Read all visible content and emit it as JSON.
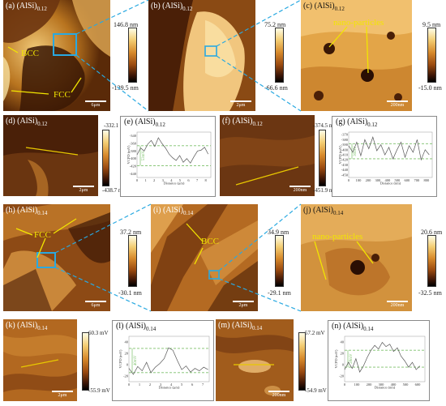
{
  "panels": {
    "a": {
      "label": "(a) (AlSi)",
      "sub": "0.12",
      "scale": "6μm",
      "cbar_max": "146.8 nm",
      "cbar_min": "-139.5 nm",
      "ann1": "BCC",
      "ann2": "FCC"
    },
    "b": {
      "label": "(b) (AlSi)",
      "sub": "0.12",
      "scale": "2μm",
      "cbar_max": "75.2 nm",
      "cbar_min": "-66.6 nm"
    },
    "c": {
      "label": "(c) (AlSi)",
      "sub": "0.12",
      "scale": "200nm",
      "cbar_max": "9.5 nm",
      "cbar_min": "-15.0 nm",
      "ann": "nano-particles"
    },
    "d": {
      "label": "(d) (AlSi)",
      "sub": "0.12",
      "scale": "2μm",
      "cbar_max": "-332.1 mV",
      "cbar_min": "-438.7 mV"
    },
    "e": {
      "label": "(e) (AlSi)",
      "sub": "0.12",
      "ylabel": "V",
      "ylabel_sub": "CPD",
      "ylabel_unit": "(mV)",
      "xlabel": "Distance (μm)",
      "vtext": "53mV",
      "yticks": [
        "-340",
        "-360",
        "-380",
        "-400",
        "-420",
        "-440"
      ],
      "xticks": [
        "0",
        "1",
        "2",
        "3",
        "4",
        "5",
        "6",
        "7",
        "8"
      ]
    },
    "f": {
      "label": "(f) (AlSi)",
      "sub": "0.12",
      "scale": "200nm",
      "cbar_max": "-374.5 mV",
      "cbar_min": "-451.9 mV"
    },
    "g": {
      "label": "(g) (AlSi)",
      "sub": "0.12",
      "ylabel": "V",
      "ylabel_sub": "CPD",
      "ylabel_unit": "(mV)",
      "xlabel": "Distance (nm)",
      "vtext": "30mV",
      "yticks": [
        "-370",
        "-380",
        "-390",
        "-400",
        "-410",
        "-420",
        "-430",
        "-440",
        "-450"
      ],
      "xticks": [
        "0",
        "100",
        "200",
        "300",
        "400",
        "500",
        "600",
        "700",
        "800"
      ]
    },
    "h": {
      "label": "(h) (AlSi)",
      "sub": "0.14",
      "scale": "6μm",
      "cbar_max": "37.2 nm",
      "cbar_min": "-30.1 nm",
      "ann": "FCC"
    },
    "i": {
      "label": "(i) (AlSi)",
      "sub": "0.14",
      "scale": "2μm",
      "cbar_max": "34.9 nm",
      "cbar_min": "-29.1 nm",
      "ann": "BCC"
    },
    "j": {
      "label": "(j) (AlSi)",
      "sub": "0.14",
      "scale": "200nm",
      "cbar_max": "20.6 nm",
      "cbar_min": "-32.5 nm",
      "ann": "nano-particles"
    },
    "k": {
      "label": "(k) (AlSi)",
      "sub": "0.14",
      "scale": "2μm",
      "cbar_max": "60.3 mV",
      "cbar_min": "-55.9 mV"
    },
    "l": {
      "label": "(l) (AlSi)",
      "sub": "0.14",
      "ylabel": "V",
      "ylabel_sub": "CPD",
      "ylabel_unit": "(mV)",
      "xlabel": "Distance (μm)",
      "vtext": "40mV",
      "yticks": [
        "40",
        "20",
        "0",
        "-20"
      ],
      "xticks": [
        "0",
        "1",
        "2",
        "3",
        "4",
        "5",
        "6",
        "7"
      ]
    },
    "m": {
      "label": "(m) (AlSi)",
      "sub": "0.14",
      "scale": "200nm",
      "cbar_max": "57.2 mV",
      "cbar_min": "-54.9 mV"
    },
    "n": {
      "label": "(n) (AlSi)",
      "sub": "0.14",
      "ylabel": "V",
      "ylabel_sub": "CPD",
      "ylabel_unit": "(mV)",
      "xlabel": "Distance (nm)",
      "vtext": "28mV",
      "yticks": [
        "40",
        "20",
        "0",
        "-20"
      ],
      "xticks": [
        "0",
        "100",
        "200",
        "300",
        "400",
        "500",
        "600"
      ]
    }
  },
  "chart_data": [
    {
      "type": "line",
      "panel": "e",
      "ylim": [
        -450,
        -330
      ],
      "xlim": [
        0,
        8.3
      ],
      "x": [
        0,
        0.4,
        0.8,
        1.2,
        1.6,
        2.0,
        2.4,
        2.8,
        3.2,
        3.6,
        4.0,
        4.4,
        4.8,
        5.2,
        5.6,
        6.0,
        6.4,
        6.8,
        7.2,
        7.6,
        8.0
      ],
      "y": [
        -390,
        -372,
        -380,
        -362,
        -352,
        -368,
        -345,
        -360,
        -372,
        -388,
        -398,
        -405,
        -392,
        -410,
        -400,
        -412,
        -395,
        -380,
        -378,
        -370,
        -388
      ],
      "ref_lines": [
        -366,
        -419
      ]
    },
    {
      "type": "line",
      "panel": "g",
      "ylim": [
        -455,
        -365
      ],
      "xlim": [
        0,
        830
      ],
      "x": [
        0,
        40,
        80,
        120,
        160,
        200,
        240,
        280,
        320,
        360,
        400,
        440,
        480,
        520,
        560,
        600,
        640,
        680,
        720,
        760,
        800
      ],
      "y": [
        -392,
        -405,
        -385,
        -412,
        -380,
        -398,
        -375,
        -402,
        -390,
        -410,
        -395,
        -418,
        -400,
        -385,
        -415,
        -392,
        -405,
        -380,
        -420,
        -400,
        -410
      ],
      "ref_lines": [
        -388,
        -418
      ]
    },
    {
      "type": "line",
      "panel": "l",
      "ylim": [
        -30,
        45
      ],
      "xlim": [
        0,
        7.3
      ],
      "x": [
        0,
        0.4,
        0.8,
        1.2,
        1.6,
        2.0,
        2.4,
        2.8,
        3.2,
        3.6,
        4.0,
        4.4,
        4.8,
        5.2,
        5.6,
        6.0,
        6.4,
        6.8,
        7.2
      ],
      "y": [
        -8,
        -18,
        -5,
        -12,
        2,
        -15,
        -6,
        0,
        8,
        26,
        22,
        5,
        -10,
        -4,
        -14,
        -8,
        -12,
        -6,
        -10
      ],
      "ref_lines": [
        25,
        -15
      ]
    },
    {
      "type": "line",
      "panel": "n",
      "ylim": [
        -30,
        45
      ],
      "xlim": [
        0,
        640
      ],
      "x": [
        0,
        30,
        60,
        90,
        120,
        150,
        180,
        210,
        240,
        270,
        300,
        330,
        360,
        390,
        420,
        450,
        480,
        510,
        540,
        570,
        600
      ],
      "y": [
        -10,
        2,
        -8,
        8,
        -14,
        -4,
        10,
        22,
        30,
        24,
        35,
        28,
        32,
        20,
        26,
        12,
        4,
        -6,
        2,
        -10,
        -4
      ],
      "ref_lines": [
        22,
        -6
      ]
    }
  ],
  "colors": {
    "label_yellow": "#f2e600",
    "connector_blue": "#29a9e1",
    "guide_green": "#7cc06a",
    "profile_arrow": "#e8c800"
  }
}
